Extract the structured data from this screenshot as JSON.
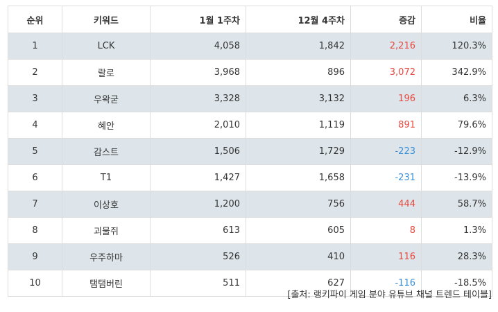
{
  "headers": {
    "rank": "순위",
    "keyword": "키워드",
    "week_a": "1월 1주차",
    "week_b": "12월 4주차",
    "change": "증감",
    "ratio": "비율"
  },
  "rows": [
    {
      "rank": "1",
      "keyword": "LCK",
      "week_a": "4,058",
      "week_b": "1,842",
      "change": "2,216",
      "ratio": "120.3%"
    },
    {
      "rank": "2",
      "keyword": "랄로",
      "week_a": "3,968",
      "week_b": "896",
      "change": "3,072",
      "ratio": "342.9%"
    },
    {
      "rank": "3",
      "keyword": "우왁굳",
      "week_a": "3,328",
      "week_b": "3,132",
      "change": "196",
      "ratio": "6.3%"
    },
    {
      "rank": "4",
      "keyword": "혜안",
      "week_a": "2,010",
      "week_b": "1,119",
      "change": "891",
      "ratio": "79.6%"
    },
    {
      "rank": "5",
      "keyword": "감스트",
      "week_a": "1,506",
      "week_b": "1,729",
      "change": "-223",
      "ratio": "-12.9%"
    },
    {
      "rank": "6",
      "keyword": "T1",
      "week_a": "1,427",
      "week_b": "1,658",
      "change": "-231",
      "ratio": "-13.9%"
    },
    {
      "rank": "7",
      "keyword": "이상호",
      "week_a": "1,200",
      "week_b": "756",
      "change": "444",
      "ratio": "58.7%"
    },
    {
      "rank": "8",
      "keyword": "괴물쥐",
      "week_a": "613",
      "week_b": "605",
      "change": "8",
      "ratio": "1.3%"
    },
    {
      "rank": "9",
      "keyword": "우주하마",
      "week_a": "526",
      "week_b": "410",
      "change": "116",
      "ratio": "28.3%"
    },
    {
      "rank": "10",
      "keyword": "탬탬버린",
      "week_a": "511",
      "week_b": "627",
      "change": "-116",
      "ratio": "-18.5%"
    }
  ],
  "colors": {
    "increase": "#e8493f",
    "decrease": "#3a8fd6",
    "shaded_row": "#dde5ea"
  },
  "source_note": "[출처: 랭키파이 게임 분야 유튜브 채널 트렌드 테이블]"
}
